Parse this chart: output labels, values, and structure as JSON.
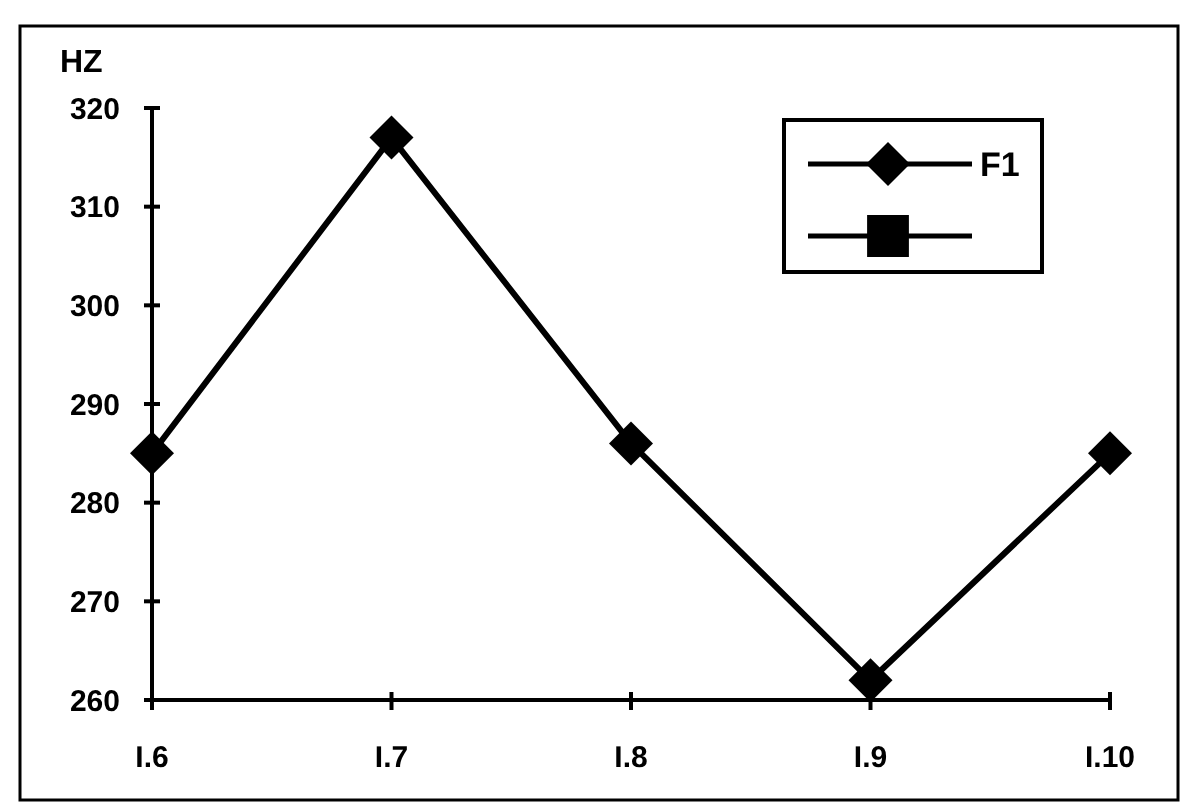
{
  "chart_data": {
    "type": "line",
    "ylabel": "HZ",
    "categories": [
      "I.6",
      "I.7",
      "I.8",
      "I.9",
      "I.10"
    ],
    "series": [
      {
        "name": "F1",
        "color": "#000000",
        "marker": "diamond",
        "values": [
          285,
          317,
          286,
          262,
          285
        ]
      },
      {
        "color": "#000000",
        "marker": "square",
        "values": [
          null,
          null,
          null,
          null,
          null
        ]
      }
    ],
    "ylim": [
      260,
      320
    ],
    "yticks": [
      260,
      270,
      280,
      290,
      300,
      310,
      320
    ],
    "legend": "top right",
    "line_style": "solid"
  }
}
